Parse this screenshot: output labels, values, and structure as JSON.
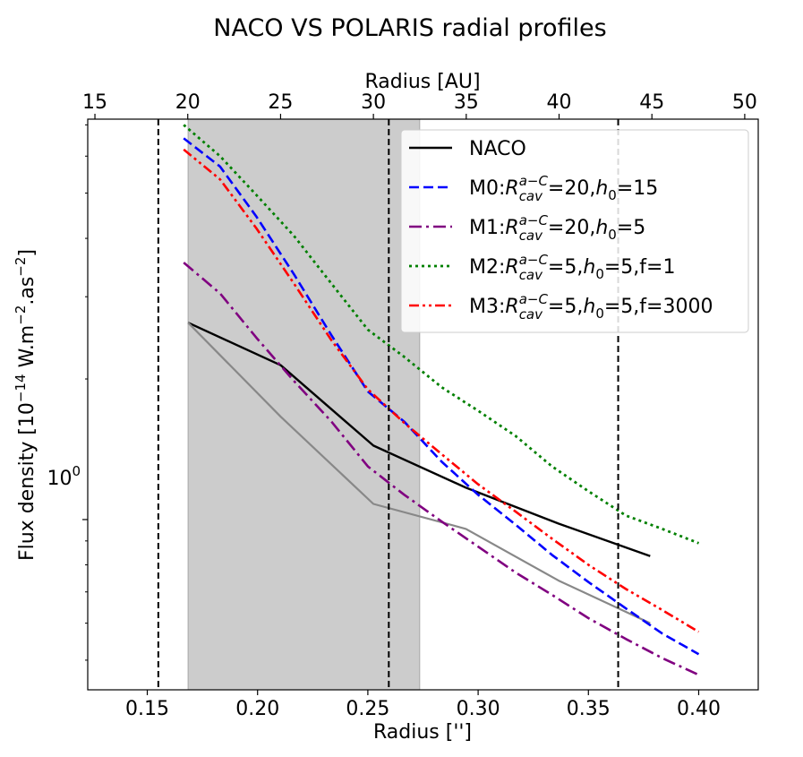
{
  "chart_data": {
    "type": "line",
    "title": "NACO VS POLARIS radial profiles",
    "xlabel": "Radius ['']",
    "ylabel": "Flux density [10",
    "ylabel_exp": "−14",
    "ylabel_units_a": " W.m",
    "ylabel_units_exp": "−2",
    "ylabel_units_b": ".as",
    "ylabel_units_exp2": "−2",
    "ylabel_close": "]",
    "top_xlabel": "Radius [AU]",
    "y_scale": "log",
    "xlim": [
      0.123,
      0.427
    ],
    "ylim": [
      0.432,
      7.2
    ],
    "xticks": [
      0.15,
      0.2,
      0.25,
      0.3,
      0.35,
      0.4
    ],
    "xtick_labels": [
      "0.15",
      "0.20",
      "0.25",
      "0.30",
      "0.35",
      "0.40"
    ],
    "yticks": [
      1.0
    ],
    "ytick_labels": [
      "10",
      "0"
    ],
    "top_ticks_au": [
      15,
      20,
      25,
      30,
      35,
      40,
      45,
      50
    ],
    "top_tick_labels": [
      "15",
      "20",
      "25",
      "30",
      "35",
      "40",
      "45",
      "50"
    ],
    "au_per_arcsec": 118.8,
    "shaded_region": {
      "x_start": 0.1685,
      "x_end": 0.2735,
      "color": "#cccccc"
    },
    "vertical_lines": [
      0.155,
      0.2595,
      0.3635
    ],
    "series": [
      {
        "name": "NACO",
        "label_parts": [
          "NACO"
        ],
        "color": "#000000",
        "dash": "solid",
        "width": 2.4,
        "x": [
          0.1685,
          0.2105,
          0.2525,
          0.2945,
          0.3365,
          0.378
        ],
        "y": [
          2.64,
          2.14,
          1.44,
          1.17,
          0.98,
          0.835
        ]
      },
      {
        "name": "POLARIS (grey)",
        "label_parts": [],
        "color": "#888888",
        "dash": "solid",
        "width": 2.2,
        "x": [
          0.1685,
          0.2105,
          0.2525,
          0.2945,
          0.3365,
          0.378
        ],
        "y": [
          2.64,
          1.66,
          1.08,
          0.955,
          0.74,
          0.6
        ]
      },
      {
        "name": "M0",
        "label_parts": [
          "M0:",
          "R",
          "cav",
          "a−C",
          "=20,",
          "h",
          "0",
          "=15"
        ],
        "color": "#0000ff",
        "dash": "dashed",
        "width": 2.6,
        "x": [
          0.1665,
          0.183,
          0.1995,
          0.2165,
          0.2335,
          0.25,
          0.2665,
          0.2835,
          0.3,
          0.317,
          0.3335,
          0.35,
          0.367,
          0.3835,
          0.4
        ],
        "y": [
          6.55,
          5.7,
          4.45,
          3.35,
          2.48,
          1.88,
          1.62,
          1.33,
          1.13,
          0.975,
          0.84,
          0.735,
          0.645,
          0.57,
          0.515
        ]
      },
      {
        "name": "M1",
        "label_parts": [
          "M1:",
          "R",
          "cav",
          "a−C",
          "=20,",
          "h",
          "0",
          "=5"
        ],
        "color": "#800080",
        "dash": "dashdot",
        "width": 2.6,
        "x": [
          0.1665,
          0.183,
          0.1995,
          0.2165,
          0.2335,
          0.25,
          0.2665,
          0.2835,
          0.3,
          0.317,
          0.3335,
          0.35,
          0.367,
          0.3835,
          0.4
        ],
        "y": [
          3.55,
          3.05,
          2.45,
          1.98,
          1.62,
          1.3,
          1.13,
          0.99,
          0.875,
          0.77,
          0.69,
          0.615,
          0.555,
          0.505,
          0.465
        ]
      },
      {
        "name": "M2",
        "label_parts": [
          "M2:",
          "R",
          "cav",
          "a−C",
          "=5,",
          "h",
          "0",
          "=5,f=1"
        ],
        "color": "#008000",
        "dash": "dotted",
        "width": 2.8,
        "x": [
          0.1665,
          0.183,
          0.1995,
          0.2165,
          0.2335,
          0.25,
          0.2665,
          0.2835,
          0.3,
          0.317,
          0.3335,
          0.35,
          0.367,
          0.3835,
          0.4
        ],
        "y": [
          7.0,
          6.0,
          4.95,
          4.05,
          3.2,
          2.55,
          2.23,
          1.92,
          1.71,
          1.51,
          1.3,
          1.15,
          1.02,
          0.955,
          0.89
        ]
      },
      {
        "name": "M3",
        "label_parts": [
          "M3:",
          "R",
          "cav",
          "a−C",
          "=5,",
          "h",
          "0",
          "=5,f=3000"
        ],
        "color": "#ff0000",
        "dash": "dashdotdot",
        "width": 2.6,
        "x": [
          0.1665,
          0.183,
          0.1995,
          0.2165,
          0.2335,
          0.25,
          0.2665,
          0.2835,
          0.3,
          0.317,
          0.3335,
          0.35,
          0.367,
          0.3835,
          0.4
        ],
        "y": [
          6.2,
          5.35,
          4.2,
          3.2,
          2.42,
          1.9,
          1.61,
          1.38,
          1.19,
          1.04,
          0.91,
          0.8,
          0.71,
          0.64,
          0.575
        ]
      }
    ],
    "legend_position": "upper-right"
  }
}
